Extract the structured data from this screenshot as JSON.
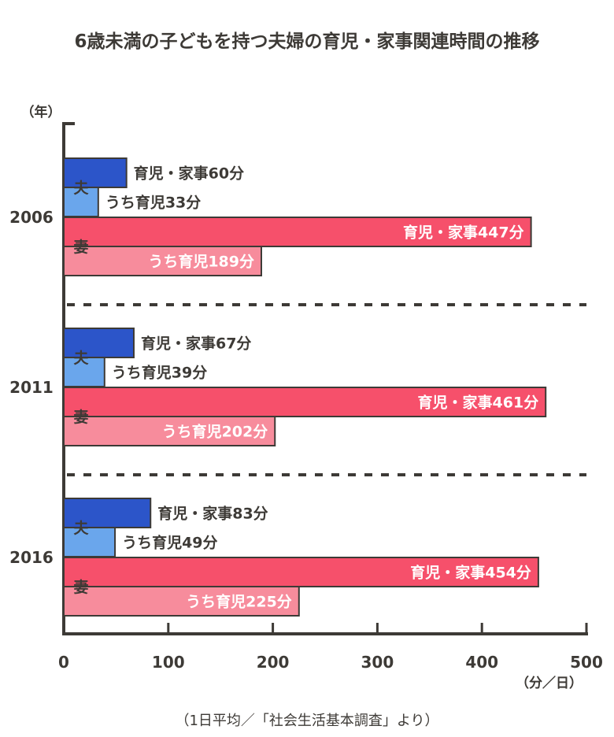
{
  "chart_data": {
    "type": "bar",
    "title": "6歳未満の子どもを持つ夫婦の育児・家事関連時間の推移",
    "ylabel": "（年）",
    "xlabel": "（分／日）",
    "xlim": [
      0,
      500
    ],
    "xticks": [
      "0",
      "100",
      "200",
      "300",
      "400",
      "500"
    ],
    "source_note": "（1日平均／「社会生活基本調査」より）",
    "colors": {
      "husband_total": "#2c55c9",
      "husband_childcare": "#6aa6ec",
      "wife_total": "#f6506b",
      "wife_childcare": "#f78c9c",
      "axis": "#3d3a36"
    },
    "groups": [
      {
        "year": "2006",
        "bars": [
          {
            "role": "夫",
            "series": "育児・家事",
            "value": 60,
            "label": "育児・家事60分"
          },
          {
            "role": "夫",
            "series": "うち育児",
            "value": 33,
            "label": "うち育児33分"
          },
          {
            "role": "妻",
            "series": "育児・家事",
            "value": 447,
            "label": "育児・家事447分"
          },
          {
            "role": "妻",
            "series": "うち育児",
            "value": 189,
            "label": "うち育児189分"
          }
        ]
      },
      {
        "year": "2011",
        "bars": [
          {
            "role": "夫",
            "series": "育児・家事",
            "value": 67,
            "label": "育児・家事67分"
          },
          {
            "role": "夫",
            "series": "うち育児",
            "value": 39,
            "label": "うち育児39分"
          },
          {
            "role": "妻",
            "series": "育児・家事",
            "value": 461,
            "label": "育児・家事461分"
          },
          {
            "role": "妻",
            "series": "うち育児",
            "value": 202,
            "label": "うち育児202分"
          }
        ]
      },
      {
        "year": "2016",
        "bars": [
          {
            "role": "夫",
            "series": "育児・家事",
            "value": 83,
            "label": "育児・家事83分"
          },
          {
            "role": "夫",
            "series": "うち育児",
            "value": 49,
            "label": "うち育児49分"
          },
          {
            "role": "妻",
            "series": "育児・家事",
            "value": 454,
            "label": "育児・家事454分"
          },
          {
            "role": "妻",
            "series": "うち育児",
            "value": 225,
            "label": "うち育児225分"
          }
        ]
      }
    ]
  }
}
